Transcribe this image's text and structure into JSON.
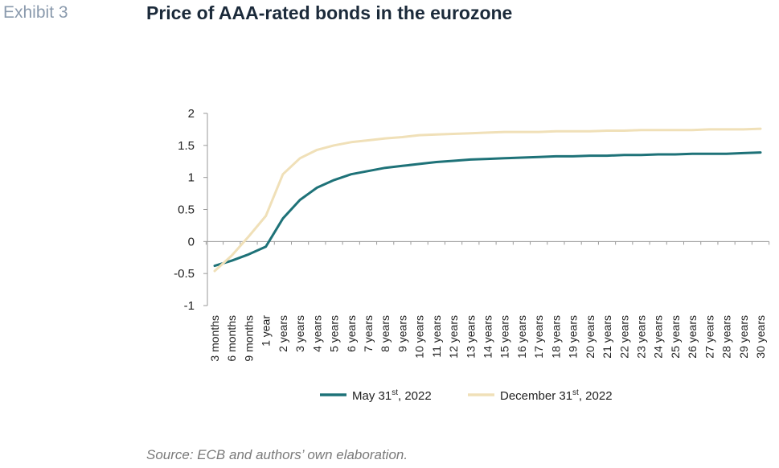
{
  "header": {
    "exhibit": "Exhibit 3",
    "title": "Price of AAA-rated bonds in the eurozone"
  },
  "footer": {
    "source": "Source: ECB and authors’ own elaboration."
  },
  "chart_data": {
    "type": "line",
    "title": "Price of AAA-rated bonds in the eurozone",
    "xlabel": "",
    "ylabel": "",
    "ylim": [
      -1,
      2
    ],
    "yticks": [
      "2",
      "1.5",
      "1",
      "0.5",
      "0",
      "-0.5",
      "-1"
    ],
    "grid": false,
    "legend_position": "bottom",
    "categories": [
      "3 months",
      "6 months",
      "9 months",
      "1 year",
      "2 years",
      "3 years",
      "4 years",
      "5 years",
      "6 years",
      "7 years",
      "8 years",
      "9 years",
      "10 years",
      "11 years",
      "12 years",
      "13 years",
      "14 years",
      "15 years",
      "16 years",
      "17 years",
      "18 years",
      "19 years",
      "20 years",
      "21 years",
      "22 years",
      "23 years",
      "24 years",
      "25 years",
      "26 years",
      "27 years",
      "28 years",
      "29 years",
      "30 years"
    ],
    "series": [
      {
        "name": "May 31st, 2022",
        "legend_main": "May 31",
        "legend_sup": "st",
        "legend_tail": ", 2022",
        "color": "#1e7278",
        "values": [
          -0.38,
          -0.3,
          -0.2,
          -0.08,
          0.36,
          0.65,
          0.84,
          0.96,
          1.05,
          1.1,
          1.15,
          1.18,
          1.21,
          1.24,
          1.26,
          1.28,
          1.29,
          1.3,
          1.31,
          1.32,
          1.33,
          1.33,
          1.34,
          1.34,
          1.35,
          1.35,
          1.36,
          1.36,
          1.37,
          1.37,
          1.37,
          1.38,
          1.39
        ]
      },
      {
        "name": "December 31st, 2022",
        "legend_main": "December 31",
        "legend_sup": "st",
        "legend_tail": ", 2022",
        "color": "#f0e0b8",
        "values": [
          -0.46,
          -0.22,
          0.08,
          0.4,
          1.05,
          1.3,
          1.43,
          1.5,
          1.55,
          1.58,
          1.61,
          1.63,
          1.66,
          1.67,
          1.68,
          1.69,
          1.7,
          1.71,
          1.71,
          1.71,
          1.72,
          1.72,
          1.72,
          1.73,
          1.73,
          1.74,
          1.74,
          1.74,
          1.74,
          1.75,
          1.75,
          1.75,
          1.76
        ]
      }
    ]
  }
}
